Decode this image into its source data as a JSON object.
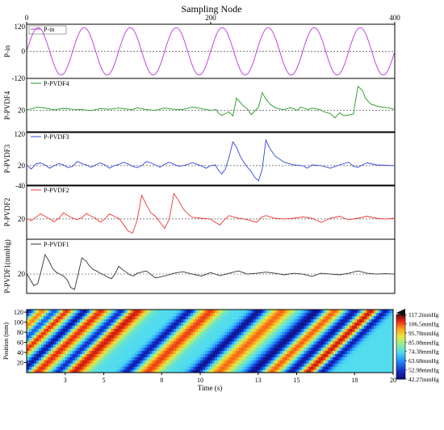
{
  "chart_data": [
    {
      "type": "line",
      "title": "Sampling Node",
      "x_axis": {
        "range": [
          0,
          400
        ],
        "ticks": [
          "0",
          "200",
          "400"
        ]
      },
      "panels": [
        {
          "id": "pin",
          "ylabel": "P-in",
          "legend": "P-in",
          "color": "#bb33dd",
          "ylim": [
            -120,
            120
          ],
          "y_ticks": [
            "120",
            "0",
            "-120"
          ],
          "baseline": 0,
          "series": {
            "kind": "sine",
            "amplitude": 105,
            "period": 50,
            "phase_x": 0
          }
        },
        {
          "id": "pvdf4",
          "ylabel": "P-PVDF4",
          "legend": "P-PVDF4",
          "color": "#229922",
          "ylim": [
            -50,
            120
          ],
          "y_ticks": [
            "20"
          ],
          "baseline": 20,
          "series": {
            "x": [
              0,
              5,
              12,
              20,
              30,
              40,
              50,
              60,
              70,
              80,
              90,
              100,
              110,
              115,
              120,
              130,
              140,
              150,
              160,
              170,
              180,
              190,
              200,
              206,
              208,
              212,
              215,
              220,
              224,
              226,
              228,
              232,
              236,
              240,
              242,
              244,
              248,
              252,
              256,
              260,
              265,
              270,
              275,
              280,
              286,
              290,
              293,
              296,
              298,
              302,
              306,
              310,
              315,
              320,
              322,
              330,
              335,
              340,
              345,
              350,
              355,
              360,
              365,
              368,
              372,
              375,
              378,
              382,
              386,
              390,
              394,
              398,
              400
            ],
            "y": [
              22,
              24,
              30,
              27,
              21,
              26,
              23,
              22,
              19,
              25,
              23,
              27,
              23,
              22,
              28,
              22,
              20,
              27,
              23,
              22,
              30,
              25,
              20,
              22,
              12,
              4,
              8,
              15,
              2,
              28,
              58,
              45,
              32,
              25,
              14,
              6,
              18,
              30,
              75,
              55,
              38,
              28,
              24,
              22,
              28,
              25,
              20,
              24,
              30,
              26,
              22,
              27,
              24,
              21,
              16,
              10,
              -4,
              12,
              3,
              5,
              8,
              95,
              82,
              58,
              45,
              38,
              36,
              32,
              30,
              29,
              27,
              24,
              22
            ]
          }
        },
        {
          "id": "pvdf3",
          "ylabel": "P-PVDF3",
          "legend": "P-PVDF3",
          "color": "#3344dd",
          "ylim": [
            -40,
            120
          ],
          "y_ticks": [
            "120",
            "20",
            "-40"
          ],
          "baseline": 20,
          "series": {
            "x": [
              0,
              5,
              10,
              15,
              20,
              25,
              30,
              35,
              40,
              45,
              50,
              55,
              60,
              65,
              70,
              75,
              80,
              85,
              90,
              95,
              100,
              105,
              110,
              115,
              120,
              125,
              130,
              135,
              140,
              145,
              150,
              155,
              160,
              165,
              170,
              175,
              180,
              185,
              190,
              195,
              200,
              205,
              208,
              212,
              216,
              220,
              224,
              228,
              232,
              236,
              240,
              244,
              248,
              252,
              256,
              260,
              264,
              270,
              280,
              290,
              300,
              305,
              310,
              320,
              330,
              340,
              350,
              355,
              360,
              365,
              370,
              380,
              390,
              400
            ],
            "y": [
              22,
              10,
              25,
              28,
              22,
              12,
              20,
              26,
              22,
              14,
              18,
              32,
              26,
              22,
              15,
              22,
              28,
              22,
              12,
              20,
              23,
              30,
              25,
              18,
              14,
              20,
              32,
              28,
              22,
              15,
              24,
              30,
              24,
              18,
              20,
              23,
              29,
              24,
              19,
              12,
              20,
              22,
              8,
              -5,
              10,
              45,
              90,
              75,
              48,
              30,
              15,
              2,
              -15,
              -25,
              10,
              95,
              72,
              48,
              30,
              22,
              20,
              12,
              22,
              20,
              12,
              22,
              30,
              18,
              15,
              22,
              28,
              22,
              21,
              20
            ]
          }
        },
        {
          "id": "pvdf2",
          "ylabel": "P-PVDF2",
          "legend": "P-PVDF2",
          "color": "#ee3333",
          "ylim": [
            -40,
            120
          ],
          "y_ticks": [
            "20"
          ],
          "baseline": 20,
          "series": {
            "x": [
              0,
              5,
              10,
              15,
              20,
              25,
              30,
              35,
              40,
              45,
              50,
              55,
              60,
              65,
              70,
              75,
              80,
              85,
              90,
              95,
              100,
              105,
              110,
              115,
              120,
              125,
              130,
              135,
              140,
              145,
              150,
              155,
              160,
              165,
              170,
              175,
              180,
              190,
              200,
              205,
              210,
              215,
              220,
              230,
              240,
              250,
              255,
              260,
              270,
              280,
              290,
              300,
              310,
              320,
              330,
              340,
              345,
              350,
              360,
              370,
              380,
              390,
              400
            ],
            "y": [
              22,
              15,
              25,
              35,
              28,
              20,
              12,
              22,
              38,
              30,
              22,
              18,
              24,
              36,
              28,
              22,
              10,
              20,
              35,
              28,
              22,
              5,
              -15,
              -22,
              15,
              90,
              62,
              38,
              28,
              10,
              -8,
              20,
              95,
              75,
              50,
              35,
              25,
              22,
              20,
              10,
              2,
              18,
              30,
              22,
              18,
              10,
              25,
              30,
              22,
              20,
              22,
              26,
              22,
              10,
              22,
              28,
              22,
              18,
              22,
              28,
              22,
              20,
              22
            ]
          }
        },
        {
          "id": "pvdf1",
          "ylabel": "P-PVDF1(mmHg)",
          "legend": "P-PVDF1",
          "color": "#333333",
          "ylim": [
            -30,
            110
          ],
          "y_ticks": [
            "20"
          ],
          "baseline": 20,
          "series": {
            "x": [
              0,
              4,
              8,
              12,
              16,
              20,
              24,
              28,
              32,
              36,
              40,
              44,
              48,
              52,
              56,
              60,
              64,
              68,
              72,
              76,
              80,
              84,
              88,
              92,
              96,
              100,
              104,
              108,
              112,
              116,
              120,
              130,
              140,
              150,
              160,
              170,
              180,
              190,
              200,
              210,
              220,
              230,
              240,
              250,
              260,
              270,
              280,
              290,
              300,
              310,
              320,
              330,
              340,
              350,
              360,
              370,
              380,
              390,
              400
            ],
            "y": [
              22,
              5,
              -10,
              -5,
              30,
              70,
              55,
              35,
              25,
              20,
              15,
              5,
              -15,
              -20,
              20,
              62,
              55,
              42,
              32,
              28,
              22,
              18,
              12,
              8,
              20,
              40,
              32,
              25,
              18,
              15,
              22,
              28,
              10,
              15,
              22,
              26,
              20,
              15,
              24,
              16,
              22,
              28,
              20,
              22,
              25,
              22,
              18,
              22,
              20,
              14,
              22,
              20,
              18,
              22,
              28,
              22,
              20,
              21,
              20
            ]
          }
        }
      ]
    },
    {
      "type": "heatmap",
      "xlabel": "Time (s)",
      "ylabel": "Position (mm)",
      "x_ticks": [
        "3",
        "5",
        "8",
        "10",
        "13",
        "15",
        "18",
        "20"
      ],
      "y_ticks": [
        "20",
        "40",
        "60",
        "80",
        "100",
        "120"
      ],
      "xlim": [
        1,
        20
      ],
      "ylim": [
        0,
        125
      ],
      "colorbar": {
        "labels": [
          "117.2mmHg",
          "106.5mmHg",
          "95.78mmHg",
          "85.08mmHg",
          "74.38mmHg",
          "63.68mmHg",
          "52.98mmHg",
          "42.27mmHg"
        ],
        "min": 42.27,
        "max": 117.2
      },
      "bands": [
        {
          "t_at_top": 1.2,
          "value": 48,
          "width": 0.35
        },
        {
          "t_at_top": 1.9,
          "value": 106,
          "width": 0.45
        },
        {
          "t_at_top": 2.5,
          "value": 48,
          "width": 0.4
        },
        {
          "t_at_top": 3.1,
          "value": 112,
          "width": 0.4
        },
        {
          "t_at_top": 4.1,
          "value": 44,
          "width": 0.35
        },
        {
          "t_at_top": 4.9,
          "value": 110,
          "width": 0.5
        },
        {
          "t_at_top": 6.0,
          "value": 45,
          "width": 0.35
        },
        {
          "t_at_top": 6.8,
          "value": 112,
          "width": 0.6
        },
        {
          "t_at_top": 9.5,
          "value": 46,
          "width": 0.35
        },
        {
          "t_at_top": 10.6,
          "value": 108,
          "width": 0.6
        },
        {
          "t_at_top": 13.1,
          "value": 44,
          "width": 0.4
        },
        {
          "t_at_top": 14.3,
          "value": 105,
          "width": 0.6
        },
        {
          "t_at_top": 16.1,
          "value": 43,
          "width": 0.5
        },
        {
          "t_at_top": 17.0,
          "value": 107,
          "width": 0.5
        },
        {
          "t_at_top": 18.1,
          "value": 44,
          "width": 0.45
        },
        {
          "t_at_top": 18.9,
          "value": 114,
          "width": 0.5
        },
        {
          "t_at_top": 19.6,
          "value": 43,
          "width": 0.35
        }
      ],
      "band_slope_s_per_mm": 0.027,
      "background_value": 74
    }
  ]
}
